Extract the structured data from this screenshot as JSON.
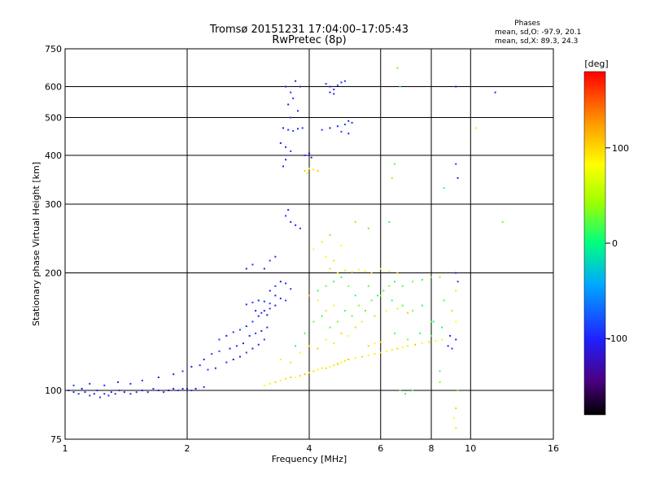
{
  "chart_data": {
    "type": "scatter",
    "title": "Tromsø 20151231 17:04:00–17:05:43",
    "subtitle": "RwPretec (8p)",
    "xlabel": "Frequency [MHz]",
    "ylabel": "Stationary phase Virtual Height [km]",
    "x_scale": "log",
    "y_scale": "log",
    "xlim": [
      1,
      16
    ],
    "ylim": [
      75,
      750
    ],
    "x_ticks": [
      1,
      2,
      4,
      6,
      8,
      10,
      16
    ],
    "y_ticks": [
      75,
      100,
      200,
      300,
      400,
      500,
      600,
      750
    ],
    "grid": true,
    "stats": {
      "heading": "Phases",
      "line_o": "mean, sd,O:  -97.9, 20.1",
      "line_x": "mean, sd,X:  89.3, 24.3"
    },
    "colorbar": {
      "label": "[deg]",
      "range": [
        -180,
        180
      ],
      "ticks": [
        -100,
        0,
        100
      ],
      "colormap": "rainbow"
    },
    "series": [
      {
        "component": "O",
        "color_deg": -110,
        "points": [
          [
            1.02,
            100
          ],
          [
            1.05,
            99
          ],
          [
            1.08,
            98
          ],
          [
            1.1,
            101
          ],
          [
            1.12,
            99
          ],
          [
            1.15,
            97
          ],
          [
            1.18,
            98
          ],
          [
            1.2,
            100
          ],
          [
            1.22,
            96
          ],
          [
            1.25,
            98
          ],
          [
            1.28,
            97
          ],
          [
            1.3,
            99
          ],
          [
            1.33,
            98
          ],
          [
            1.36,
            100
          ],
          [
            1.4,
            99
          ],
          [
            1.45,
            98
          ],
          [
            1.5,
            99
          ],
          [
            1.55,
            100
          ],
          [
            1.6,
            99
          ],
          [
            1.65,
            101
          ],
          [
            1.7,
            100
          ],
          [
            1.75,
            99
          ],
          [
            1.8,
            100
          ],
          [
            1.85,
            101
          ],
          [
            1.9,
            100
          ],
          [
            1.95,
            101
          ],
          [
            2.0,
            101
          ],
          [
            2.05,
            100
          ],
          [
            2.1,
            101
          ],
          [
            2.2,
            102
          ],
          [
            1.05,
            103
          ],
          [
            1.15,
            104
          ],
          [
            1.25,
            103
          ],
          [
            1.35,
            105
          ],
          [
            1.45,
            104
          ],
          [
            1.55,
            106
          ],
          [
            1.7,
            108
          ],
          [
            1.85,
            110
          ],
          [
            1.95,
            112
          ],
          [
            2.05,
            115
          ],
          [
            2.15,
            116
          ],
          [
            2.25,
            113
          ],
          [
            2.35,
            114
          ],
          [
            2.5,
            118
          ],
          [
            2.6,
            120
          ],
          [
            2.7,
            122
          ],
          [
            2.8,
            125
          ],
          [
            2.9,
            128
          ],
          [
            3.0,
            131
          ],
          [
            3.1,
            135
          ],
          [
            2.2,
            120
          ],
          [
            2.3,
            124
          ],
          [
            2.4,
            126
          ],
          [
            2.55,
            128
          ],
          [
            2.65,
            130
          ],
          [
            2.75,
            132
          ],
          [
            2.85,
            138
          ],
          [
            2.95,
            140
          ],
          [
            3.05,
            142
          ],
          [
            3.15,
            145
          ],
          [
            2.4,
            135
          ],
          [
            2.5,
            138
          ],
          [
            2.6,
            141
          ],
          [
            2.7,
            143
          ],
          [
            2.8,
            146
          ],
          [
            2.9,
            150
          ],
          [
            3.0,
            155
          ],
          [
            3.1,
            160
          ],
          [
            3.2,
            162
          ],
          [
            3.3,
            165
          ],
          [
            2.8,
            166
          ],
          [
            2.9,
            168
          ],
          [
            3.0,
            170
          ],
          [
            3.1,
            169
          ],
          [
            3.2,
            167
          ],
          [
            2.95,
            160
          ],
          [
            3.05,
            158
          ],
          [
            3.15,
            156
          ],
          [
            3.2,
            180
          ],
          [
            3.3,
            185
          ],
          [
            3.4,
            190
          ],
          [
            3.5,
            188
          ],
          [
            3.6,
            182
          ],
          [
            3.3,
            175
          ],
          [
            3.4,
            172
          ],
          [
            3.5,
            170
          ],
          [
            3.5,
            600
          ],
          [
            3.6,
            580
          ],
          [
            3.7,
            620
          ],
          [
            3.8,
            600
          ],
          [
            3.65,
            560
          ],
          [
            3.55,
            540
          ],
          [
            3.75,
            520
          ],
          [
            3.6,
            500
          ],
          [
            3.45,
            470
          ],
          [
            3.55,
            465
          ],
          [
            3.65,
            462
          ],
          [
            3.75,
            468
          ],
          [
            3.85,
            470
          ],
          [
            3.4,
            430
          ],
          [
            3.5,
            420
          ],
          [
            3.6,
            410
          ],
          [
            3.5,
            390
          ],
          [
            3.45,
            375
          ],
          [
            4.4,
            610
          ],
          [
            4.5,
            600
          ],
          [
            4.6,
            590
          ],
          [
            4.7,
            605
          ],
          [
            4.8,
            615
          ],
          [
            4.9,
            620
          ],
          [
            4.5,
            580
          ],
          [
            4.6,
            575
          ],
          [
            4.3,
            465
          ],
          [
            4.5,
            470
          ],
          [
            4.7,
            475
          ],
          [
            4.9,
            480
          ],
          [
            5.0,
            490
          ],
          [
            5.1,
            485
          ],
          [
            4.8,
            460
          ],
          [
            5.0,
            455
          ],
          [
            3.9,
            400
          ],
          [
            4.0,
            405
          ],
          [
            4.05,
            395
          ],
          [
            3.5,
            280
          ],
          [
            3.6,
            270
          ],
          [
            3.7,
            265
          ],
          [
            3.8,
            260
          ],
          [
            3.55,
            290
          ],
          [
            3.3,
            220
          ],
          [
            3.2,
            215
          ],
          [
            3.1,
            205
          ],
          [
            2.9,
            210
          ],
          [
            2.8,
            205
          ],
          [
            8.8,
            130
          ],
          [
            9.0,
            128
          ],
          [
            9.2,
            135
          ],
          [
            8.9,
            138
          ],
          [
            9.3,
            190
          ],
          [
            9.2,
            200
          ],
          [
            9.3,
            350
          ],
          [
            9.2,
            380
          ],
          [
            9.2,
            600
          ],
          [
            11.5,
            580
          ]
        ]
      },
      {
        "component": "X",
        "color_deg": 95,
        "points": [
          [
            3.1,
            103
          ],
          [
            3.2,
            104
          ],
          [
            3.3,
            105
          ],
          [
            3.4,
            106
          ],
          [
            3.5,
            107
          ],
          [
            3.6,
            108
          ],
          [
            3.7,
            108
          ],
          [
            3.8,
            109
          ],
          [
            3.9,
            110
          ],
          [
            4.0,
            111
          ],
          [
            4.1,
            112
          ],
          [
            4.2,
            113
          ],
          [
            4.3,
            114
          ],
          [
            4.4,
            114
          ],
          [
            4.5,
            115
          ],
          [
            4.6,
            116
          ],
          [
            4.7,
            117
          ],
          [
            4.8,
            118
          ],
          [
            4.9,
            119
          ],
          [
            5.0,
            120
          ],
          [
            5.2,
            121
          ],
          [
            5.4,
            122
          ],
          [
            5.6,
            123
          ],
          [
            5.8,
            124
          ],
          [
            6.0,
            125
          ],
          [
            6.2,
            126
          ],
          [
            6.4,
            127
          ],
          [
            6.6,
            128
          ],
          [
            6.8,
            129
          ],
          [
            7.0,
            130
          ],
          [
            7.3,
            131
          ],
          [
            7.6,
            132
          ],
          [
            7.9,
            133
          ],
          [
            8.2,
            134
          ],
          [
            8.5,
            135
          ],
          [
            5.6,
            130
          ],
          [
            5.8,
            132
          ],
          [
            6.0,
            133
          ],
          [
            3.9,
            365
          ],
          [
            4.0,
            370
          ],
          [
            4.1,
            368
          ],
          [
            4.2,
            365
          ],
          [
            3.95,
            360
          ],
          [
            4.5,
            205
          ],
          [
            4.7,
            200
          ],
          [
            4.9,
            203
          ],
          [
            5.1,
            201
          ],
          [
            5.3,
            204
          ],
          [
            5.5,
            202
          ],
          [
            5.7,
            200
          ],
          [
            6.0,
            205
          ],
          [
            6.3,
            202
          ],
          [
            6.6,
            200
          ],
          [
            3.4,
            120
          ],
          [
            3.6,
            118
          ],
          [
            3.8,
            125
          ],
          [
            4.0,
            130
          ],
          [
            4.2,
            128
          ],
          [
            4.4,
            135
          ],
          [
            4.6,
            132
          ],
          [
            4.8,
            140
          ],
          [
            5.0,
            138
          ],
          [
            5.2,
            145
          ],
          [
            4.0,
            175
          ],
          [
            4.2,
            170
          ],
          [
            4.4,
            160
          ],
          [
            4.6,
            165
          ],
          [
            5.4,
            150
          ],
          [
            5.8,
            155
          ],
          [
            6.2,
            160
          ],
          [
            6.6,
            162
          ],
          [
            7.0,
            158
          ],
          [
            4.1,
            230
          ],
          [
            4.3,
            240
          ],
          [
            4.5,
            250
          ],
          [
            4.4,
            220
          ],
          [
            4.6,
            215
          ],
          [
            4.8,
            235
          ],
          [
            9.2,
            180
          ],
          [
            9.0,
            160
          ],
          [
            9.2,
            150
          ],
          [
            10.3,
            470
          ],
          [
            9.2,
            90
          ],
          [
            9.1,
            85
          ],
          [
            9.2,
            80
          ]
        ]
      },
      {
        "component": "mixed",
        "color_deg": 20,
        "points": [
          [
            3.7,
            130
          ],
          [
            3.9,
            140
          ],
          [
            4.1,
            150
          ],
          [
            4.3,
            155
          ],
          [
            4.5,
            145
          ],
          [
            4.7,
            150
          ],
          [
            4.9,
            160
          ],
          [
            5.1,
            155
          ],
          [
            5.3,
            165
          ],
          [
            5.5,
            160
          ],
          [
            5.7,
            170
          ],
          [
            5.9,
            175
          ],
          [
            6.1,
            180
          ],
          [
            6.3,
            185
          ],
          [
            6.5,
            190
          ],
          [
            6.8,
            185
          ],
          [
            7.2,
            190
          ],
          [
            7.6,
            192
          ],
          [
            8.0,
            195
          ],
          [
            8.4,
            195
          ],
          [
            4.2,
            180
          ],
          [
            4.4,
            185
          ],
          [
            4.6,
            190
          ],
          [
            4.8,
            195
          ],
          [
            5.0,
            185
          ],
          [
            5.2,
            175
          ],
          [
            5.6,
            185
          ],
          [
            6.0,
            175
          ],
          [
            6.4,
            170
          ],
          [
            6.8,
            165
          ],
          [
            7.2,
            160
          ],
          [
            7.6,
            165
          ],
          [
            8.0,
            150
          ],
          [
            8.5,
            145
          ],
          [
            6.5,
            140
          ],
          [
            7.0,
            135
          ],
          [
            7.5,
            140
          ],
          [
            8.0,
            138
          ],
          [
            6.7,
            100
          ],
          [
            6.9,
            98
          ],
          [
            7.2,
            100
          ],
          [
            8.4,
            105
          ],
          [
            8.4,
            112
          ],
          [
            9.3,
            100
          ],
          [
            8.1,
            150
          ],
          [
            8.6,
            170
          ],
          [
            6.6,
            670
          ],
          [
            6.7,
            600
          ],
          [
            6.5,
            380
          ],
          [
            6.4,
            350
          ],
          [
            6.3,
            270
          ],
          [
            5.6,
            260
          ],
          [
            5.2,
            270
          ],
          [
            8.6,
            330
          ],
          [
            12.0,
            270
          ]
        ]
      }
    ]
  }
}
